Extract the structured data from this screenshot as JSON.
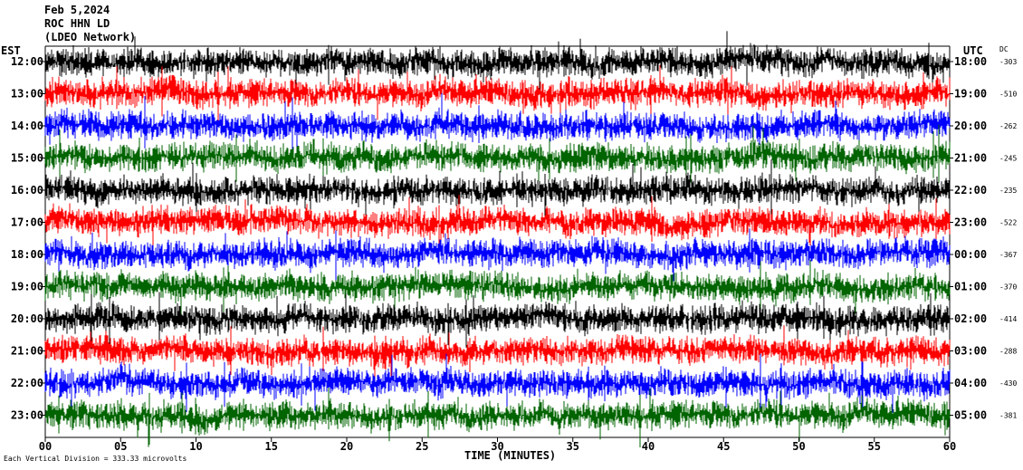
{
  "header": {
    "date": "Feb 5,2024",
    "station": "ROC HHN LD",
    "network": "(LDEO Network)"
  },
  "chart_data": {
    "type": "line",
    "title": "Feb 5,2024",
    "left_axis_label": "EST",
    "right_axis_label": "UTC",
    "dc_label": "DC",
    "xlabel": "TIME (MINUTES)",
    "x_ticks": [
      "00",
      "05",
      "10",
      "15",
      "20",
      "25",
      "30",
      "35",
      "40",
      "45",
      "50",
      "55",
      "60"
    ],
    "xlim": [
      0,
      60
    ],
    "trace_colors": [
      "#000000",
      "#ff0000",
      "#0000ff",
      "#006400"
    ],
    "rows": [
      {
        "est": "12:00",
        "utc": "18:00",
        "dc": "-303"
      },
      {
        "est": "13:00",
        "utc": "19:00",
        "dc": "-510"
      },
      {
        "est": "14:00",
        "utc": "20:00",
        "dc": "-262"
      },
      {
        "est": "15:00",
        "utc": "21:00",
        "dc": "-245"
      },
      {
        "est": "16:00",
        "utc": "22:00",
        "dc": "-235"
      },
      {
        "est": "17:00",
        "utc": "23:00",
        "dc": "-522"
      },
      {
        "est": "18:00",
        "utc": "00:00",
        "dc": "-367"
      },
      {
        "est": "19:00",
        "utc": "01:00",
        "dc": "-370"
      },
      {
        "est": "20:00",
        "utc": "02:00",
        "dc": "-414"
      },
      {
        "est": "21:00",
        "utc": "03:00",
        "dc": "-288"
      },
      {
        "est": "22:00",
        "utc": "04:00",
        "dc": "-430"
      },
      {
        "est": "23:00",
        "utc": "05:00",
        "dc": "-381"
      }
    ],
    "footer_note": "Each Vertical Division = 333.33 microvolts"
  }
}
